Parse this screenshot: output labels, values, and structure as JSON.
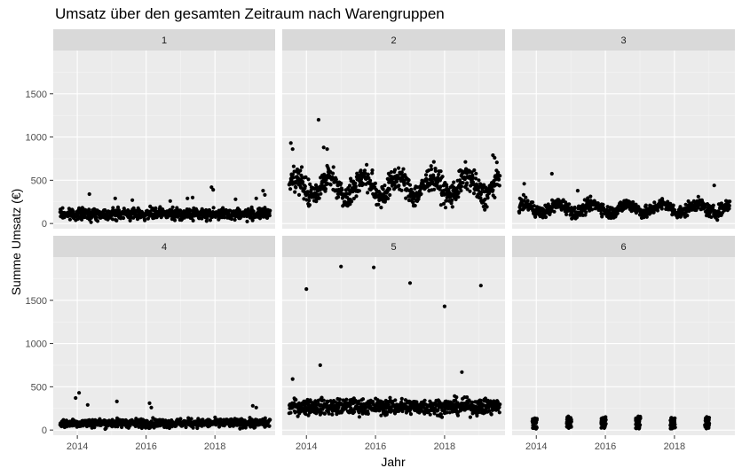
{
  "chart_data": {
    "type": "scatter",
    "title": "Umsatz über den gesamten Zeitraum nach Warengruppen",
    "xlabel": "Jahr",
    "ylabel": "Summe Umsatz (€)",
    "xlim": [
      2013.3,
      2019.75
    ],
    "ylim": [
      -60,
      2000
    ],
    "xticks": [
      2014,
      2016,
      2018
    ],
    "yticks": [
      0,
      500,
      1000,
      1500
    ],
    "grid": true,
    "facets": [
      {
        "label": "1",
        "x_start": 2013.5,
        "x_end": 2019.6,
        "base": 110,
        "spread": 70,
        "outliers": [
          [
            2014.35,
            340
          ],
          [
            2015.1,
            290
          ],
          [
            2015.6,
            270
          ],
          [
            2016.7,
            260
          ],
          [
            2017.2,
            290
          ],
          [
            2017.35,
            300
          ],
          [
            2017.9,
            420
          ],
          [
            2017.95,
            390
          ],
          [
            2018.6,
            280
          ],
          [
            2019.2,
            290
          ],
          [
            2019.4,
            380
          ],
          [
            2019.45,
            330
          ]
        ]
      },
      {
        "label": "2",
        "x_start": 2013.5,
        "x_end": 2019.6,
        "base": 430,
        "spread": 160,
        "outliers": [
          [
            2013.55,
            930
          ],
          [
            2013.6,
            860
          ],
          [
            2014.35,
            1200
          ],
          [
            2014.5,
            880
          ],
          [
            2014.6,
            860
          ],
          [
            2019.4,
            790
          ],
          [
            2019.45,
            760
          ]
        ]
      },
      {
        "label": "3",
        "x_start": 2013.5,
        "x_end": 2019.6,
        "base": 175,
        "spread": 80,
        "outliers": [
          [
            2013.65,
            460
          ],
          [
            2014.45,
            575
          ],
          [
            2015.2,
            380
          ],
          [
            2019.15,
            440
          ]
        ]
      },
      {
        "label": "4",
        "x_start": 2013.5,
        "x_end": 2019.6,
        "base": 80,
        "spread": 55,
        "outliers": [
          [
            2013.95,
            370
          ],
          [
            2014.05,
            430
          ],
          [
            2014.3,
            290
          ],
          [
            2015.15,
            330
          ],
          [
            2016.1,
            310
          ],
          [
            2016.15,
            260
          ],
          [
            2019.1,
            280
          ],
          [
            2019.2,
            260
          ]
        ]
      },
      {
        "label": "5",
        "x_start": 2013.5,
        "x_end": 2019.6,
        "base": 270,
        "spread": 100,
        "outliers": [
          [
            2014.0,
            1630
          ],
          [
            2014.4,
            750
          ],
          [
            2015.0,
            1890
          ],
          [
            2015.95,
            1880
          ],
          [
            2017.0,
            1700
          ],
          [
            2018.0,
            1430
          ],
          [
            2018.5,
            670
          ],
          [
            2019.05,
            1670
          ],
          [
            2013.6,
            590
          ]
        ]
      },
      {
        "label": "6",
        "x_start": 2013.5,
        "x_end": 2019.6,
        "base": 0,
        "spread": 0,
        "clusters": [
          2013.95,
          2014.95,
          2015.95,
          2016.95,
          2017.95,
          2018.95
        ],
        "cluster_max": [
          140,
          160,
          155,
          165,
          145,
          160
        ],
        "outliers": []
      }
    ]
  }
}
